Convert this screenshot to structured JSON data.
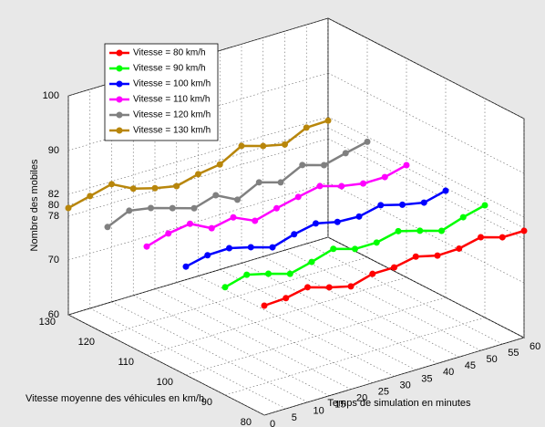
{
  "chart_data": {
    "type": "line3d",
    "xlabel": "Temps de simulation en minutes",
    "ylabel": "Vitesse moyenne des véhicules en km/h",
    "zlabel": "Nombre des mobiles",
    "x": [
      0,
      5,
      10,
      15,
      20,
      25,
      30,
      35,
      40,
      45,
      50,
      55,
      60
    ],
    "xlim": [
      0,
      60
    ],
    "xticks": [
      0,
      5,
      10,
      15,
      20,
      25,
      30,
      35,
      40,
      45,
      50,
      55,
      60
    ],
    "ylim": [
      80,
      130
    ],
    "yticks": [
      80,
      90,
      100,
      110,
      120,
      130
    ],
    "zlim": [
      60,
      100
    ],
    "zticks": [
      60,
      70,
      78,
      80,
      82,
      90,
      100
    ],
    "grid": true,
    "legend": "upper left",
    "series": [
      {
        "name": "Vitesse = 80 km/h",
        "color": "#ff0000",
        "y": 80,
        "values": [
          80,
          80.2,
          81,
          79.8,
          78.8,
          79.9,
          79.9,
          80.7,
          79.7,
          79.8,
          80.7,
          79.5,
          79.5
        ]
      },
      {
        "name": "Vitesse = 90 km/h",
        "color": "#00ff00",
        "y": 90,
        "values": [
          79.7,
          80.8,
          79.8,
          78.6,
          79.6,
          80.8,
          79.6,
          79.6,
          80.5,
          79.4,
          78.2,
          79.5,
          80.5
        ]
      },
      {
        "name": "Vitesse = 100 km/h",
        "color": "#0000ff",
        "y": 100,
        "values": [
          79.8,
          80.7,
          80.8,
          79.8,
          78.6,
          79.8,
          80.6,
          79.7,
          79.5,
          80.4,
          79.3,
          78.5,
          79.5
        ]
      },
      {
        "name": "Vitesse = 110 km/h",
        "color": "#ff00ff",
        "y": 110,
        "values": [
          79.8,
          81,
          81.6,
          79.6,
          80.4,
          78.6,
          79.7,
          80.6,
          81.4,
          80.2,
          79.5,
          79.5,
          80.5
        ]
      },
      {
        "name": "Vitesse = 120 km/h",
        "color": "#808080",
        "y": 120,
        "values": [
          79.7,
          81.5,
          80.8,
          79.6,
          78.4,
          79.6,
          77.6,
          79.6,
          78.4,
          80.4,
          79.2,
          80.2,
          81.1
        ]
      },
      {
        "name": "Vitesse = 130 km/h",
        "color": "#b8860b",
        "y": 130,
        "values": [
          79.5,
          80.5,
          81.5,
          79.5,
          78.4,
          77.6,
          78.6,
          79.2,
          81.4,
          80.2,
          79.3,
          81.2,
          81.3
        ]
      }
    ]
  }
}
